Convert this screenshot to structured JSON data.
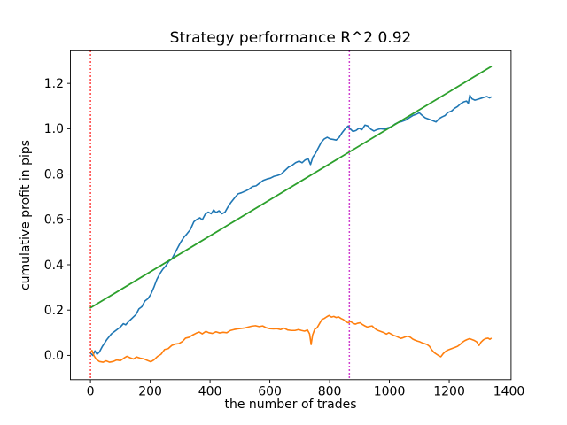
{
  "window": {
    "background": "#ffffff"
  },
  "chart_data": {
    "type": "line",
    "title": "Strategy performance R^2 0.92",
    "xlabel": "the number of trades",
    "ylabel": "cumulative profit in pips",
    "xlim": [
      -67,
      1407
    ],
    "ylim": [
      -0.107,
      1.344
    ],
    "xticks": [
      0,
      200,
      400,
      600,
      800,
      1000,
      1200,
      1400
    ],
    "yticks": [
      0.0,
      0.2,
      0.4,
      0.6,
      0.8,
      1.0,
      1.2
    ],
    "ytick_decimals": 1,
    "grid": false,
    "legend": null,
    "axis_color": "#000000",
    "series": [
      {
        "name": "cumulative-profit-curve",
        "color": "#1f77b4",
        "linestyle": "solid",
        "linewidth": 1.6,
        "points": [
          [
            0,
            0.01
          ],
          [
            8,
            0.0
          ],
          [
            15,
            0.02
          ],
          [
            22,
            0.005
          ],
          [
            30,
            0.015
          ],
          [
            40,
            0.04
          ],
          [
            55,
            0.07
          ],
          [
            70,
            0.095
          ],
          [
            85,
            0.11
          ],
          [
            100,
            0.125
          ],
          [
            110,
            0.14
          ],
          [
            118,
            0.135
          ],
          [
            128,
            0.15
          ],
          [
            140,
            0.165
          ],
          [
            152,
            0.18
          ],
          [
            162,
            0.205
          ],
          [
            172,
            0.215
          ],
          [
            182,
            0.24
          ],
          [
            192,
            0.25
          ],
          [
            202,
            0.27
          ],
          [
            212,
            0.3
          ],
          [
            222,
            0.335
          ],
          [
            232,
            0.36
          ],
          [
            242,
            0.38
          ],
          [
            252,
            0.395
          ],
          [
            262,
            0.415
          ],
          [
            272,
            0.425
          ],
          [
            282,
            0.45
          ],
          [
            292,
            0.475
          ],
          [
            302,
            0.5
          ],
          [
            312,
            0.52
          ],
          [
            322,
            0.535
          ],
          [
            334,
            0.555
          ],
          [
            346,
            0.59
          ],
          [
            356,
            0.6
          ],
          [
            366,
            0.607
          ],
          [
            374,
            0.598
          ],
          [
            384,
            0.623
          ],
          [
            394,
            0.632
          ],
          [
            404,
            0.625
          ],
          [
            412,
            0.642
          ],
          [
            420,
            0.63
          ],
          [
            430,
            0.638
          ],
          [
            440,
            0.625
          ],
          [
            450,
            0.632
          ],
          [
            460,
            0.655
          ],
          [
            470,
            0.675
          ],
          [
            482,
            0.695
          ],
          [
            494,
            0.713
          ],
          [
            506,
            0.718
          ],
          [
            518,
            0.725
          ],
          [
            530,
            0.733
          ],
          [
            542,
            0.745
          ],
          [
            554,
            0.748
          ],
          [
            566,
            0.76
          ],
          [
            578,
            0.772
          ],
          [
            590,
            0.778
          ],
          [
            602,
            0.782
          ],
          [
            614,
            0.79
          ],
          [
            626,
            0.794
          ],
          [
            638,
            0.8
          ],
          [
            650,
            0.815
          ],
          [
            662,
            0.83
          ],
          [
            674,
            0.838
          ],
          [
            686,
            0.85
          ],
          [
            698,
            0.857
          ],
          [
            708,
            0.85
          ],
          [
            718,
            0.862
          ],
          [
            728,
            0.868
          ],
          [
            736,
            0.842
          ],
          [
            744,
            0.875
          ],
          [
            752,
            0.89
          ],
          [
            762,
            0.915
          ],
          [
            772,
            0.94
          ],
          [
            782,
            0.955
          ],
          [
            792,
            0.962
          ],
          [
            802,
            0.955
          ],
          [
            812,
            0.953
          ],
          [
            822,
            0.95
          ],
          [
            832,
            0.962
          ],
          [
            842,
            0.983
          ],
          [
            852,
            1.0
          ],
          [
            862,
            1.012
          ],
          [
            870,
            0.998
          ],
          [
            878,
            0.988
          ],
          [
            888,
            0.992
          ],
          [
            898,
            1.002
          ],
          [
            908,
            0.996
          ],
          [
            918,
            1.016
          ],
          [
            928,
            1.012
          ],
          [
            938,
            0.998
          ],
          [
            948,
            0.99
          ],
          [
            958,
            0.996
          ],
          [
            970,
            1.0
          ],
          [
            982,
            0.998
          ],
          [
            994,
            1.004
          ],
          [
            1006,
            1.008
          ],
          [
            1018,
            1.02
          ],
          [
            1030,
            1.028
          ],
          [
            1042,
            1.032
          ],
          [
            1054,
            1.038
          ],
          [
            1066,
            1.048
          ],
          [
            1078,
            1.058
          ],
          [
            1090,
            1.064
          ],
          [
            1100,
            1.07
          ],
          [
            1110,
            1.058
          ],
          [
            1120,
            1.048
          ],
          [
            1132,
            1.042
          ],
          [
            1144,
            1.036
          ],
          [
            1156,
            1.03
          ],
          [
            1166,
            1.044
          ],
          [
            1176,
            1.052
          ],
          [
            1186,
            1.058
          ],
          [
            1196,
            1.072
          ],
          [
            1208,
            1.078
          ],
          [
            1218,
            1.09
          ],
          [
            1228,
            1.098
          ],
          [
            1238,
            1.11
          ],
          [
            1248,
            1.118
          ],
          [
            1258,
            1.122
          ],
          [
            1264,
            1.112
          ],
          [
            1269,
            1.148
          ],
          [
            1276,
            1.132
          ],
          [
            1286,
            1.126
          ],
          [
            1296,
            1.13
          ],
          [
            1306,
            1.134
          ],
          [
            1316,
            1.138
          ],
          [
            1326,
            1.142
          ],
          [
            1335,
            1.136
          ],
          [
            1340,
            1.14
          ]
        ]
      },
      {
        "name": "secondary-profit-curve",
        "color": "#ff7f0e",
        "linestyle": "solid",
        "linewidth": 1.6,
        "points": [
          [
            0,
            0.012
          ],
          [
            5,
            0.022
          ],
          [
            12,
            -0.002
          ],
          [
            20,
            -0.018
          ],
          [
            30,
            -0.027
          ],
          [
            42,
            -0.03
          ],
          [
            52,
            -0.024
          ],
          [
            64,
            -0.03
          ],
          [
            76,
            -0.027
          ],
          [
            88,
            -0.02
          ],
          [
            100,
            -0.023
          ],
          [
            112,
            -0.012
          ],
          [
            122,
            -0.004
          ],
          [
            132,
            -0.01
          ],
          [
            144,
            -0.016
          ],
          [
            154,
            -0.007
          ],
          [
            166,
            -0.012
          ],
          [
            178,
            -0.015
          ],
          [
            190,
            -0.022
          ],
          [
            202,
            -0.028
          ],
          [
            212,
            -0.02
          ],
          [
            224,
            -0.005
          ],
          [
            236,
            0.005
          ],
          [
            248,
            0.026
          ],
          [
            260,
            0.03
          ],
          [
            272,
            0.044
          ],
          [
            284,
            0.05
          ],
          [
            296,
            0.052
          ],
          [
            308,
            0.062
          ],
          [
            318,
            0.076
          ],
          [
            330,
            0.08
          ],
          [
            342,
            0.09
          ],
          [
            354,
            0.098
          ],
          [
            364,
            0.103
          ],
          [
            374,
            0.095
          ],
          [
            386,
            0.106
          ],
          [
            396,
            0.1
          ],
          [
            408,
            0.097
          ],
          [
            420,
            0.104
          ],
          [
            432,
            0.099
          ],
          [
            444,
            0.102
          ],
          [
            456,
            0.1
          ],
          [
            468,
            0.11
          ],
          [
            480,
            0.114
          ],
          [
            492,
            0.117
          ],
          [
            504,
            0.119
          ],
          [
            516,
            0.121
          ],
          [
            528,
            0.125
          ],
          [
            540,
            0.129
          ],
          [
            552,
            0.131
          ],
          [
            564,
            0.127
          ],
          [
            576,
            0.13
          ],
          [
            588,
            0.122
          ],
          [
            600,
            0.118
          ],
          [
            612,
            0.117
          ],
          [
            624,
            0.118
          ],
          [
            636,
            0.114
          ],
          [
            648,
            0.12
          ],
          [
            660,
            0.112
          ],
          [
            672,
            0.11
          ],
          [
            684,
            0.11
          ],
          [
            696,
            0.114
          ],
          [
            706,
            0.11
          ],
          [
            716,
            0.107
          ],
          [
            726,
            0.112
          ],
          [
            733,
            0.095
          ],
          [
            738,
            0.048
          ],
          [
            743,
            0.09
          ],
          [
            750,
            0.115
          ],
          [
            758,
            0.122
          ],
          [
            766,
            0.14
          ],
          [
            774,
            0.158
          ],
          [
            782,
            0.163
          ],
          [
            790,
            0.17
          ],
          [
            798,
            0.176
          ],
          [
            806,
            0.169
          ],
          [
            814,
            0.172
          ],
          [
            822,
            0.167
          ],
          [
            830,
            0.17
          ],
          [
            838,
            0.163
          ],
          [
            846,
            0.158
          ],
          [
            854,
            0.149
          ],
          [
            862,
            0.144
          ],
          [
            870,
            0.15
          ],
          [
            878,
            0.142
          ],
          [
            886,
            0.138
          ],
          [
            894,
            0.142
          ],
          [
            902,
            0.144
          ],
          [
            910,
            0.136
          ],
          [
            918,
            0.13
          ],
          [
            926,
            0.125
          ],
          [
            934,
            0.128
          ],
          [
            942,
            0.13
          ],
          [
            950,
            0.12
          ],
          [
            958,
            0.112
          ],
          [
            966,
            0.108
          ],
          [
            974,
            0.104
          ],
          [
            982,
            0.1
          ],
          [
            990,
            0.094
          ],
          [
            998,
            0.1
          ],
          [
            1006,
            0.094
          ],
          [
            1014,
            0.088
          ],
          [
            1022,
            0.085
          ],
          [
            1030,
            0.08
          ],
          [
            1038,
            0.075
          ],
          [
            1046,
            0.078
          ],
          [
            1054,
            0.082
          ],
          [
            1062,
            0.085
          ],
          [
            1070,
            0.08
          ],
          [
            1078,
            0.072
          ],
          [
            1086,
            0.067
          ],
          [
            1094,
            0.063
          ],
          [
            1102,
            0.06
          ],
          [
            1110,
            0.055
          ],
          [
            1118,
            0.052
          ],
          [
            1126,
            0.048
          ],
          [
            1134,
            0.04
          ],
          [
            1142,
            0.024
          ],
          [
            1150,
            0.012
          ],
          [
            1158,
            0.005
          ],
          [
            1166,
            -0.002
          ],
          [
            1172,
            -0.006
          ],
          [
            1180,
            0.008
          ],
          [
            1188,
            0.018
          ],
          [
            1196,
            0.024
          ],
          [
            1204,
            0.028
          ],
          [
            1212,
            0.032
          ],
          [
            1220,
            0.036
          ],
          [
            1228,
            0.04
          ],
          [
            1236,
            0.048
          ],
          [
            1244,
            0.058
          ],
          [
            1252,
            0.065
          ],
          [
            1260,
            0.07
          ],
          [
            1268,
            0.074
          ],
          [
            1276,
            0.07
          ],
          [
            1284,
            0.066
          ],
          [
            1292,
            0.06
          ],
          [
            1300,
            0.044
          ],
          [
            1306,
            0.058
          ],
          [
            1314,
            0.068
          ],
          [
            1322,
            0.074
          ],
          [
            1330,
            0.076
          ],
          [
            1336,
            0.071
          ],
          [
            1340,
            0.075
          ]
        ]
      },
      {
        "name": "linear-fit-line",
        "color": "#2ca02c",
        "linestyle": "solid",
        "linewidth": 1.8,
        "points": [
          [
            0,
            0.21
          ],
          [
            1340,
            1.274
          ]
        ]
      }
    ],
    "vlines": [
      {
        "name": "start-marker-vline",
        "x": 0,
        "color": "#ff0000",
        "linestyle": "dotted",
        "linewidth": 1.5
      },
      {
        "name": "split-marker-vline",
        "x": 866,
        "color": "#bf00bf",
        "linestyle": "dotted",
        "linewidth": 1.5
      }
    ]
  }
}
